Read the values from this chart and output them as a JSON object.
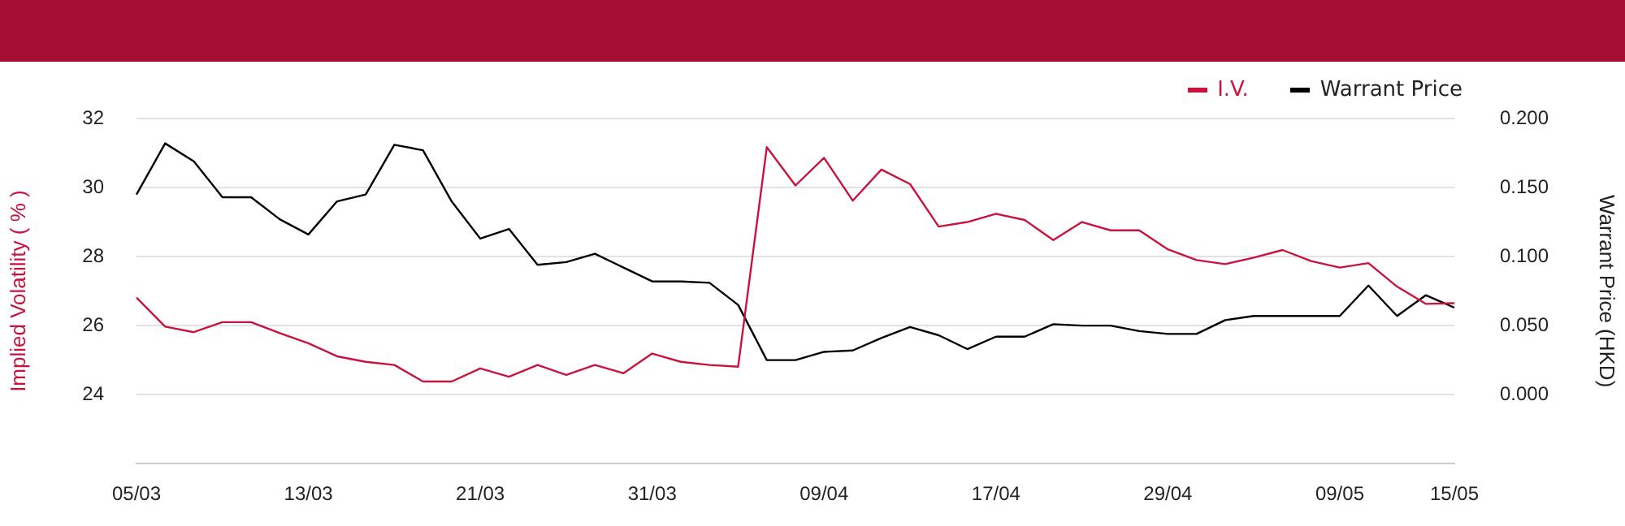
{
  "chart_data": {
    "type": "line",
    "ylabel": "Implied Volatility ( % )",
    "y2label": "Warrant Price (HKD)",
    "categories": [
      "05/03",
      null,
      null,
      null,
      null,
      null,
      "13/03",
      null,
      null,
      null,
      null,
      null,
      "21/03",
      null,
      null,
      null,
      null,
      null,
      "31/03",
      null,
      null,
      null,
      null,
      null,
      "09/04",
      null,
      null,
      null,
      null,
      null,
      "17/04",
      null,
      null,
      null,
      null,
      null,
      "29/04",
      null,
      null,
      null,
      null,
      null,
      "09/05",
      null,
      null,
      null,
      "15/05"
    ],
    "series": [
      {
        "name": "I.V.",
        "color": "#c8143c",
        "values": [
          26.81,
          25.97,
          25.81,
          26.1,
          26.1,
          25.78,
          25.49,
          25.11,
          24.95,
          24.86,
          24.38,
          24.38,
          24.76,
          24.52,
          24.86,
          24.57,
          24.86,
          24.62,
          25.19,
          24.95,
          24.86,
          24.81,
          31.17,
          30.06,
          30.86,
          29.62,
          30.52,
          30.1,
          28.87,
          29.0,
          29.24,
          29.06,
          28.48,
          29.0,
          28.76,
          28.76,
          28.21,
          27.9,
          27.78,
          27.97,
          28.19,
          27.87,
          27.68,
          27.81,
          27.13,
          26.63,
          26.65
        ]
      },
      {
        "name": "Warrant Price",
        "color": "#000000",
        "axis": "y2",
        "values": [
          0.145,
          0.182,
          0.169,
          0.143,
          0.143,
          0.127,
          0.116,
          0.14,
          0.145,
          0.181,
          0.177,
          0.14,
          0.113,
          0.12,
          0.094,
          0.096,
          0.102,
          0.092,
          0.082,
          0.082,
          0.081,
          0.065,
          0.025,
          0.025,
          0.031,
          0.032,
          0.041,
          0.049,
          0.043,
          0.033,
          0.042,
          0.042,
          0.051,
          0.05,
          0.05,
          0.046,
          0.044,
          0.044,
          0.054,
          0.057,
          0.057,
          0.057,
          0.057,
          0.079,
          0.057,
          0.072,
          0.063
        ]
      }
    ],
    "ylim": [
      22,
      32
    ],
    "yticks": [
      24,
      26,
      28,
      30,
      32
    ],
    "y2lim": [
      -0.05,
      0.2
    ],
    "y2ticks": [
      {
        "value": 0,
        "label": "0.000"
      },
      {
        "value": 0.05,
        "label": "0.050"
      },
      {
        "value": 0.1,
        "label": "0.100"
      },
      {
        "value": 0.15,
        "label": "0.150"
      },
      {
        "value": 0.2,
        "label": "0.200"
      }
    ],
    "grid": "y",
    "legend": "top right",
    "marker": "none",
    "line_style": "solid"
  }
}
